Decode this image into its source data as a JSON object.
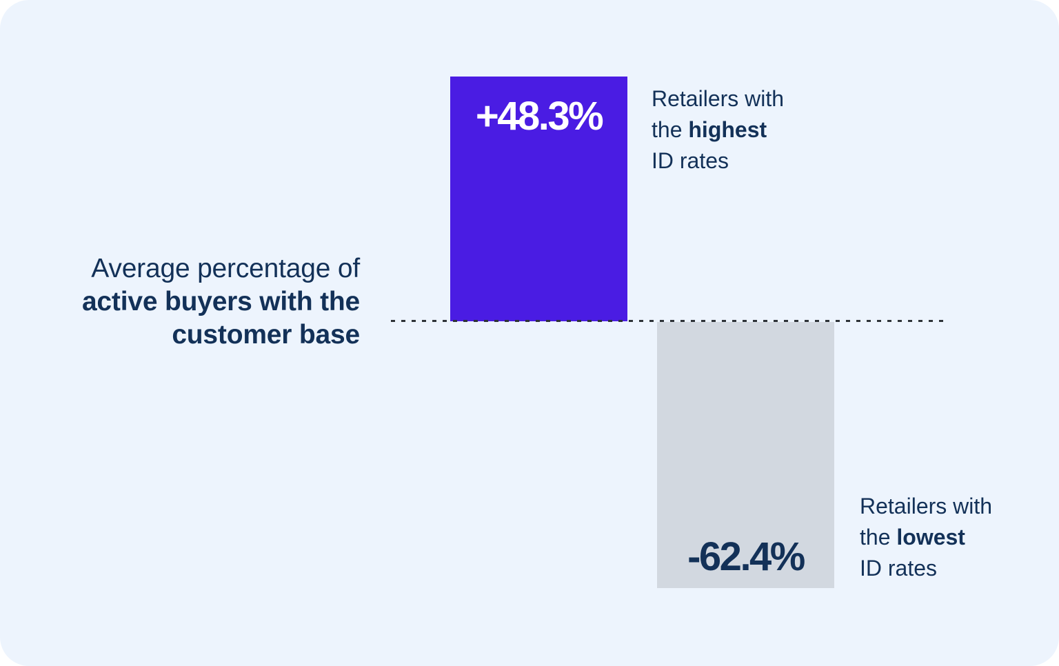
{
  "title": {
    "line1": "Average percentage of",
    "line2": "active buyers with the",
    "line3": "customer base"
  },
  "annotations": {
    "highest": {
      "line1": "Retailers with",
      "line2_prefix": "the ",
      "line2_bold": "highest",
      "line3": "ID rates"
    },
    "lowest": {
      "line1": "Retailers with",
      "line2_prefix": "the ",
      "line2_bold": "lowest",
      "line3": "ID rates"
    }
  },
  "colors": {
    "background": "#EDF4FD",
    "bar_positive": "#4A1CE3",
    "bar_negative": "#D2D8E0",
    "text_navy": "#133158",
    "value_positive_text": "#FFFFFF",
    "baseline_dash": "#2E3338"
  },
  "chart_data": {
    "type": "bar",
    "title": "Average percentage of active buyers with the customer base",
    "categories": [
      "Retailers with the highest ID rates",
      "Retailers with the lowest ID rates"
    ],
    "values": [
      48.3,
      -62.4
    ],
    "value_labels": [
      "+48.3%",
      "-62.4%"
    ],
    "unit": "%",
    "baseline": 0,
    "orientation": "vertical",
    "grid": false,
    "legend": false,
    "axes": "hidden",
    "series_colors": [
      "#4A1CE3",
      "#D2D8E0"
    ],
    "not_to_scale": true
  }
}
